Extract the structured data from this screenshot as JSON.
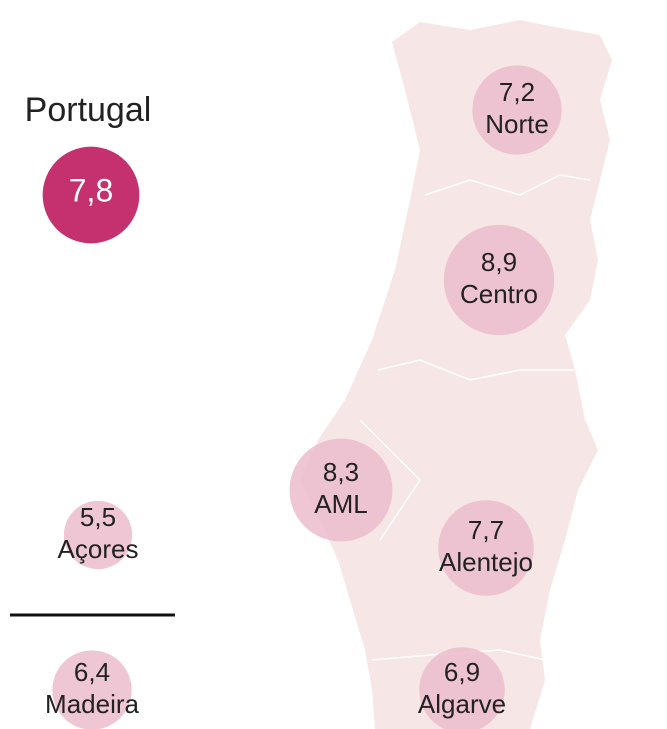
{
  "title": "Portugal",
  "national": {
    "value": 7.8,
    "value_label": "7,8",
    "color": "#c5306f"
  },
  "regions": [
    {
      "name": "Norte",
      "value": 7.2,
      "value_label": "7,2"
    },
    {
      "name": "Centro",
      "value": 8.9,
      "value_label": "8,9"
    },
    {
      "name": "AML",
      "value": 8.3,
      "value_label": "8,3"
    },
    {
      "name": "Alentejo",
      "value": 7.7,
      "value_label": "7,7"
    },
    {
      "name": "Algarve",
      "value": 6.9,
      "value_label": "6,9"
    },
    {
      "name": "Açores",
      "value": 5.5,
      "value_label": "5,5"
    },
    {
      "name": "Madeira",
      "value": 6.4,
      "value_label": "6,4"
    }
  ],
  "region_color": "#ebbccd"
}
